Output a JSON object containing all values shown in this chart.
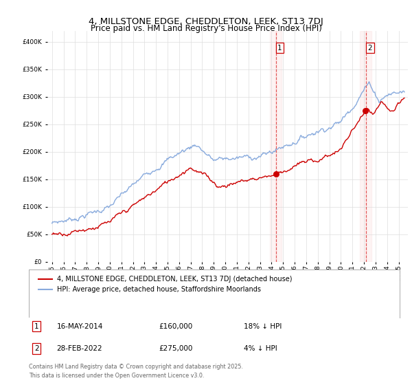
{
  "title": "4, MILLSTONE EDGE, CHEDDLETON, LEEK, ST13 7DJ",
  "subtitle": "Price paid vs. HM Land Registry's House Price Index (HPI)",
  "legend_property": "4, MILLSTONE EDGE, CHEDDLETON, LEEK, ST13 7DJ (detached house)",
  "legend_hpi": "HPI: Average price, detached house, Staffordshire Moorlands",
  "annotation1_date": "16-MAY-2014",
  "annotation1_price": "£160,000",
  "annotation1_note": "18% ↓ HPI",
  "annotation2_date": "28-FEB-2022",
  "annotation2_price": "£275,000",
  "annotation2_note": "4% ↓ HPI",
  "copyright": "Contains HM Land Registry data © Crown copyright and database right 2025.\nThis data is licensed under the Open Government Licence v3.0.",
  "property_color": "#cc0000",
  "hpi_color": "#88aadd",
  "vline_color": "#dd4444",
  "shade_color": "#ffeeee",
  "background_color": "#ffffff",
  "grid_color": "#dddddd",
  "ylim": [
    0,
    420000
  ],
  "yticks": [
    0,
    50000,
    100000,
    150000,
    200000,
    250000,
    300000,
    350000,
    400000
  ],
  "xlim_start": 1994.6,
  "xlim_end": 2025.8,
  "sale1_year": 2014.37,
  "sale2_year": 2022.16,
  "sale1_price": 160000,
  "sale2_price": 275000
}
